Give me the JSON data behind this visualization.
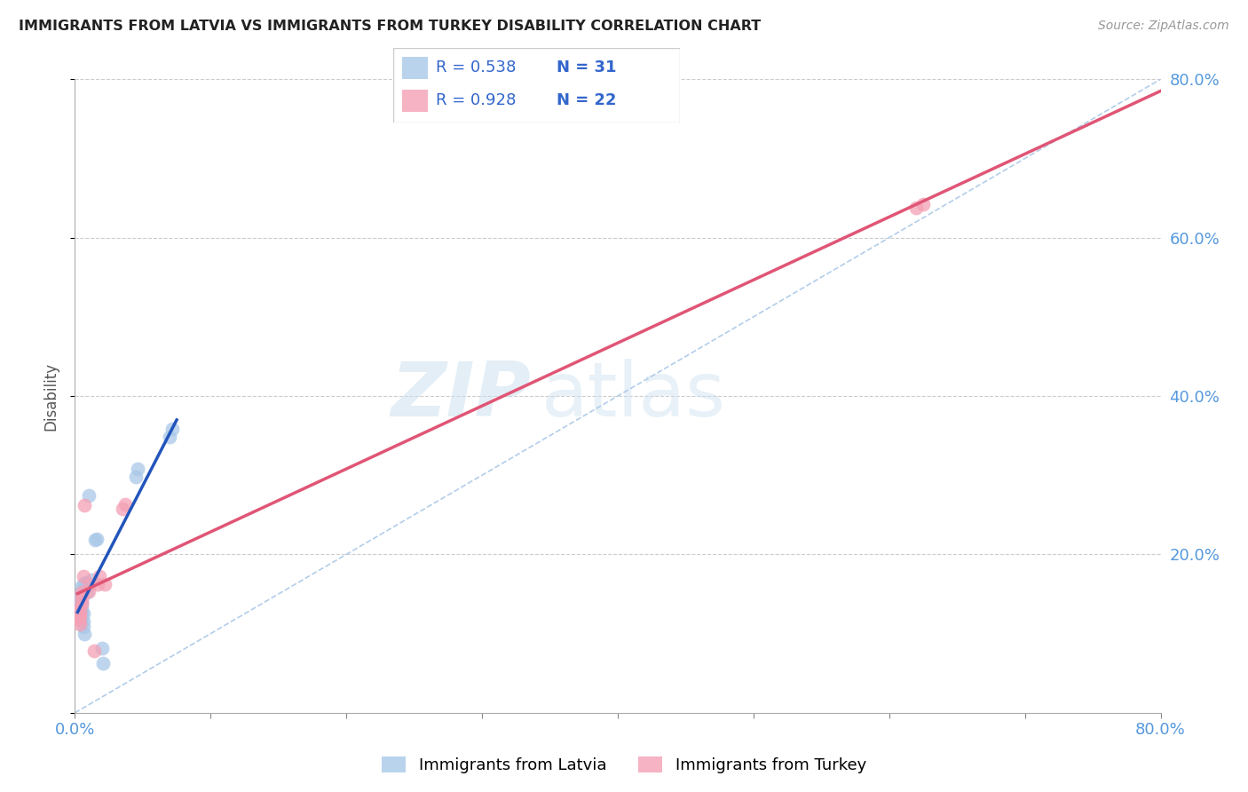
{
  "title": "IMMIGRANTS FROM LATVIA VS IMMIGRANTS FROM TURKEY DISABILITY CORRELATION CHART",
  "source": "Source: ZipAtlas.com",
  "ylabel_label": "Disability",
  "xlim": [
    0.0,
    0.8
  ],
  "ylim": [
    0.0,
    0.8
  ],
  "grid_color": "#cccccc",
  "background_color": "#ffffff",
  "watermark_zip": "ZIP",
  "watermark_atlas": "atlas",
  "legend_r1": "0.538",
  "legend_n1": "31",
  "legend_r2": "0.928",
  "legend_n2": "22",
  "series1_color": "#a8c8e8",
  "series2_color": "#f4a0b5",
  "line1_color": "#2255bb",
  "line2_color": "#e05575",
  "diag_color": "#aac8e8",
  "title_fontsize": 11.5,
  "tick_color": "#5599dd",
  "latvia_x": [
    0.003,
    0.003,
    0.003,
    0.004,
    0.004,
    0.004,
    0.005,
    0.005,
    0.005,
    0.005,
    0.005,
    0.005,
    0.005,
    0.005,
    0.006,
    0.006,
    0.006,
    0.007,
    0.007,
    0.008,
    0.009,
    0.01,
    0.012,
    0.015,
    0.016,
    0.02,
    0.021,
    0.045,
    0.046,
    0.07,
    0.072
  ],
  "latvia_y": [
    0.13,
    0.135,
    0.14,
    0.128,
    0.132,
    0.145,
    0.12,
    0.125,
    0.13,
    0.135,
    0.14,
    0.148,
    0.155,
    0.16,
    0.108,
    0.115,
    0.125,
    0.1,
    0.163,
    0.165,
    0.152,
    0.275,
    0.168,
    0.218,
    0.22,
    0.082,
    0.062,
    0.298,
    0.308,
    0.348,
    0.358
  ],
  "turkey_x": [
    0.003,
    0.003,
    0.004,
    0.004,
    0.004,
    0.004,
    0.005,
    0.005,
    0.005,
    0.005,
    0.006,
    0.007,
    0.01,
    0.011,
    0.014,
    0.017,
    0.018,
    0.022,
    0.035,
    0.037,
    0.62,
    0.625
  ],
  "turkey_y": [
    0.118,
    0.122,
    0.112,
    0.122,
    0.128,
    0.133,
    0.138,
    0.143,
    0.148,
    0.152,
    0.172,
    0.262,
    0.153,
    0.162,
    0.078,
    0.162,
    0.172,
    0.162,
    0.258,
    0.263,
    0.638,
    0.642
  ]
}
